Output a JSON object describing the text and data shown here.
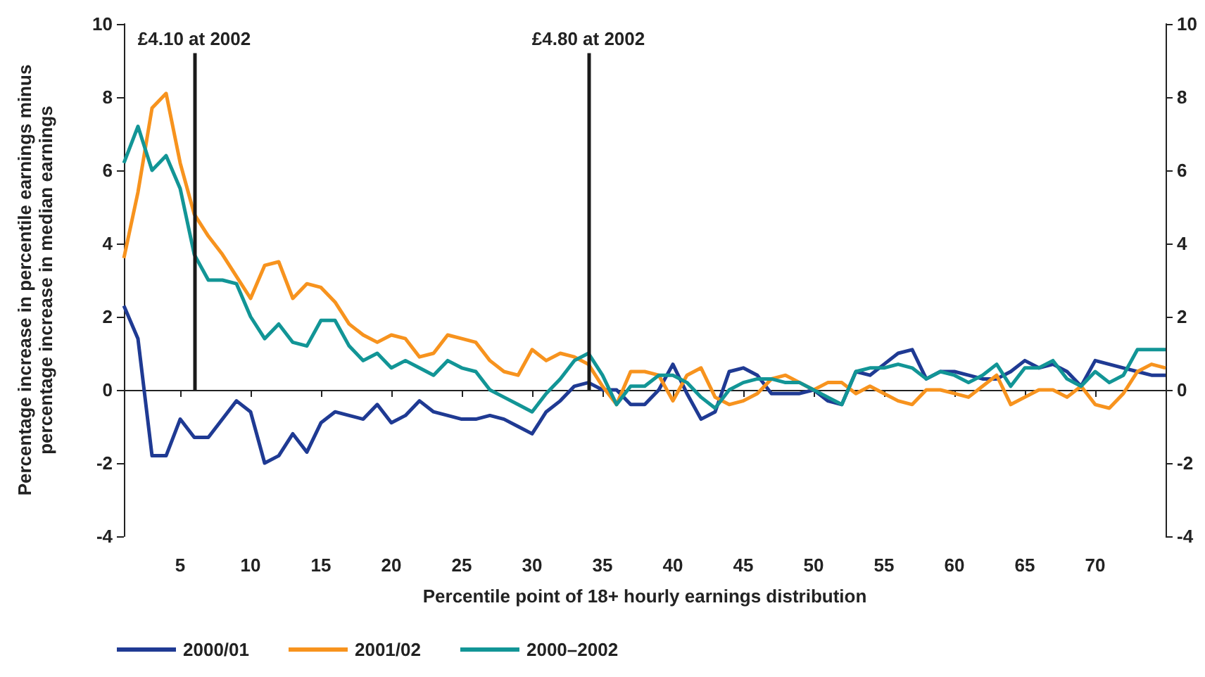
{
  "chart_data": {
    "type": "line",
    "xlabel": "Percentile point of 18+ hourly earnings distribution",
    "ylabel": "Percentage increase in percentile earnings minus\npercentage increase in median earnings",
    "x": [
      1,
      2,
      3,
      4,
      5,
      6,
      7,
      8,
      9,
      10,
      11,
      12,
      13,
      14,
      15,
      16,
      17,
      18,
      19,
      20,
      21,
      22,
      23,
      24,
      25,
      26,
      27,
      28,
      29,
      30,
      31,
      32,
      33,
      34,
      35,
      36,
      37,
      38,
      39,
      40,
      41,
      42,
      43,
      44,
      45,
      46,
      47,
      48,
      49,
      50,
      51,
      52,
      53,
      54,
      55,
      56,
      57,
      58,
      59,
      60,
      61,
      62,
      63,
      64,
      65,
      66,
      67,
      68,
      69,
      70,
      71,
      72,
      73,
      74,
      75
    ],
    "series": [
      {
        "name": "2000/01",
        "color": "#1f3a93",
        "values": [
          2.3,
          1.4,
          -1.8,
          -1.8,
          -0.8,
          -1.3,
          -1.3,
          -0.8,
          -0.3,
          -0.6,
          -2.0,
          -1.8,
          -1.2,
          -1.7,
          -0.9,
          -0.6,
          -0.7,
          -0.8,
          -0.4,
          -0.9,
          -0.7,
          -0.3,
          -0.6,
          -0.7,
          -0.8,
          -0.8,
          -0.7,
          -0.8,
          -1.0,
          -1.2,
          -0.6,
          -0.3,
          0.1,
          0.2,
          0.0,
          0.0,
          -0.4,
          -0.4,
          0.0,
          0.7,
          -0.1,
          -0.8,
          -0.6,
          0.5,
          0.6,
          0.4,
          -0.1,
          -0.1,
          -0.1,
          0.0,
          -0.3,
          -0.4,
          0.5,
          0.4,
          0.7,
          1.0,
          1.1,
          0.3,
          0.5,
          0.5,
          0.4,
          0.3,
          0.3,
          0.5,
          0.8,
          0.6,
          0.7,
          0.5,
          0.1,
          0.8,
          0.7,
          0.6,
          0.5,
          0.4,
          0.4
        ]
      },
      {
        "name": "2001/02",
        "color": "#f7931e",
        "values": [
          3.6,
          5.4,
          7.7,
          8.1,
          6.2,
          4.8,
          4.2,
          3.7,
          3.1,
          2.5,
          3.4,
          3.5,
          2.5,
          2.9,
          2.8,
          2.4,
          1.8,
          1.5,
          1.3,
          1.5,
          1.4,
          0.9,
          1.0,
          1.5,
          1.4,
          1.3,
          0.8,
          0.5,
          0.4,
          1.1,
          0.8,
          1.0,
          0.9,
          0.7,
          0.1,
          -0.4,
          0.5,
          0.5,
          0.4,
          -0.3,
          0.4,
          0.6,
          -0.2,
          -0.4,
          -0.3,
          -0.1,
          0.3,
          0.4,
          0.2,
          0.0,
          0.2,
          0.2,
          -0.1,
          0.1,
          -0.1,
          -0.3,
          -0.4,
          0.0,
          0.0,
          -0.1,
          -0.2,
          0.1,
          0.4,
          -0.4,
          -0.2,
          0.0,
          0.0,
          -0.2,
          0.1,
          -0.4,
          -0.5,
          -0.1,
          0.5,
          0.7,
          0.6
        ]
      },
      {
        "name": "2000–2002",
        "color": "#129596",
        "values": [
          6.2,
          7.2,
          6.0,
          6.4,
          5.5,
          3.7,
          3.0,
          3.0,
          2.9,
          2.0,
          1.4,
          1.8,
          1.3,
          1.2,
          1.9,
          1.9,
          1.2,
          0.8,
          1.0,
          0.6,
          0.8,
          0.6,
          0.4,
          0.8,
          0.6,
          0.5,
          0.0,
          -0.2,
          -0.4,
          -0.6,
          -0.1,
          0.3,
          0.8,
          1.0,
          0.4,
          -0.4,
          0.1,
          0.1,
          0.4,
          0.4,
          0.2,
          -0.2,
          -0.5,
          0.0,
          0.2,
          0.3,
          0.3,
          0.2,
          0.2,
          0.0,
          -0.2,
          -0.4,
          0.5,
          0.6,
          0.6,
          0.7,
          0.6,
          0.3,
          0.5,
          0.4,
          0.2,
          0.4,
          0.7,
          0.1,
          0.6,
          0.6,
          0.8,
          0.3,
          0.1,
          0.5,
          0.2,
          0.4,
          1.1,
          1.1,
          1.1
        ]
      }
    ],
    "xlim": [
      1,
      75
    ],
    "xticks": [
      5,
      10,
      15,
      20,
      25,
      30,
      35,
      40,
      45,
      50,
      55,
      60,
      65,
      70
    ],
    "ylim": [
      -4,
      10
    ],
    "yticks": [
      -4,
      -2,
      0,
      2,
      4,
      6,
      8,
      10
    ],
    "y2lim": [
      -4,
      10
    ],
    "y2ticks": [
      -4,
      -2,
      0,
      2,
      4,
      6,
      8,
      10
    ],
    "ref_lines": [
      {
        "axis": "x",
        "value": 6,
        "label": "£4.10 at 2002",
        "color": "#1a1a1a"
      },
      {
        "axis": "x",
        "value": 34,
        "label": "£4.80 at 2002",
        "color": "#1a1a1a"
      }
    ],
    "legend": "bottom left",
    "marker": "none",
    "line_style": "solid"
  }
}
